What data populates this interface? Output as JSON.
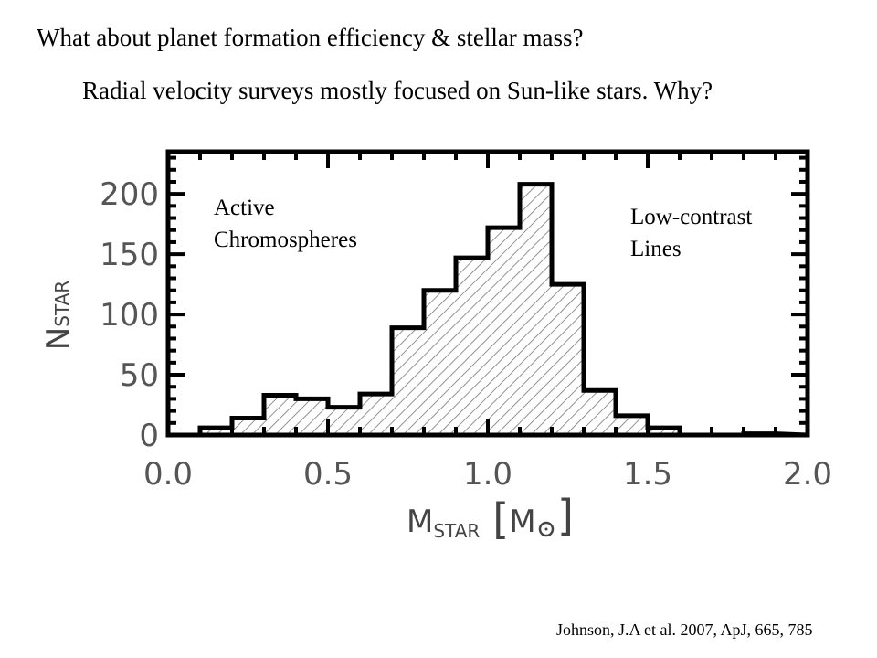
{
  "slide": {
    "title": "What about planet formation efficiency & stellar mass?",
    "subtitle": "Radial velocity surveys mostly focused on Sun-like stars. Why?",
    "citation": "Johnson, J.A et al. 2007, ApJ, 665, 785",
    "annotation_left": [
      "Active",
      "Chromospheres"
    ],
    "annotation_right": [
      "Low-contrast",
      "Lines"
    ]
  },
  "chart_data": {
    "type": "bar",
    "style": "histogram with diagonal hatch fill",
    "xlabel": "M_STAR [M_sun]",
    "ylabel": "N_STAR",
    "xlim": [
      0.0,
      2.0
    ],
    "ylim": [
      0,
      235
    ],
    "x_ticks": [
      "0.0",
      "0.5",
      "1.0",
      "1.5",
      "2.0"
    ],
    "y_ticks": [
      "0",
      "50",
      "100",
      "150",
      "200"
    ],
    "bin_edges": [
      0.1,
      0.2,
      0.3,
      0.4,
      0.5,
      0.6,
      0.7,
      0.8,
      0.9,
      1.0,
      1.1,
      1.2,
      1.3,
      1.4,
      1.5,
      1.6,
      1.7,
      1.8,
      1.9
    ],
    "values": [
      6,
      14,
      33,
      30,
      23,
      34,
      89,
      120,
      147,
      172,
      208,
      125,
      37,
      16,
      6,
      0,
      0,
      1
    ],
    "colors": {
      "bars": "#000000",
      "hatch": "#777777",
      "background": "#ffffff"
    }
  }
}
